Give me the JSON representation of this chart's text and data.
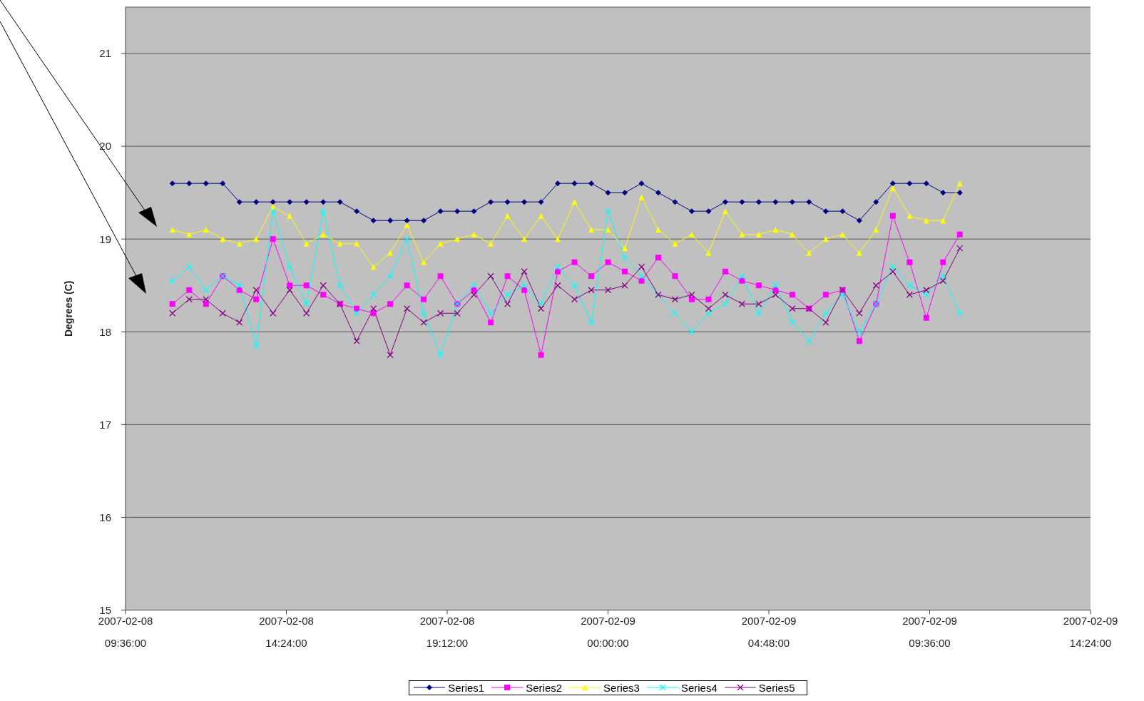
{
  "chart_data": {
    "type": "line",
    "ylabel": "Degrees (C)",
    "x": [
      "2007-02-08T11:00",
      "2007-02-08T11:30",
      "2007-02-08T12:00",
      "2007-02-08T12:30",
      "2007-02-08T13:00",
      "2007-02-08T13:30",
      "2007-02-08T14:00",
      "2007-02-08T14:30",
      "2007-02-08T15:00",
      "2007-02-08T15:30",
      "2007-02-08T16:00",
      "2007-02-08T16:30",
      "2007-02-08T17:00",
      "2007-02-08T17:30",
      "2007-02-08T18:00",
      "2007-02-08T18:30",
      "2007-02-08T19:00",
      "2007-02-08T19:30",
      "2007-02-08T20:00",
      "2007-02-08T20:30",
      "2007-02-08T21:00",
      "2007-02-08T21:30",
      "2007-02-08T22:00",
      "2007-02-08T22:30",
      "2007-02-08T23:00",
      "2007-02-08T23:30",
      "2007-02-09T00:00",
      "2007-02-09T00:30",
      "2007-02-09T01:00",
      "2007-02-09T01:30",
      "2007-02-09T02:00",
      "2007-02-09T02:30",
      "2007-02-09T03:00",
      "2007-02-09T03:30",
      "2007-02-09T04:00",
      "2007-02-09T04:30",
      "2007-02-09T05:00",
      "2007-02-09T05:30",
      "2007-02-09T06:00",
      "2007-02-09T06:30",
      "2007-02-09T07:00",
      "2007-02-09T07:30",
      "2007-02-09T08:00",
      "2007-02-09T08:30",
      "2007-02-09T09:00",
      "2007-02-09T09:30",
      "2007-02-09T10:00",
      "2007-02-09T10:30"
    ],
    "series": [
      {
        "name": "Series1",
        "color": "#000080",
        "marker": "diamond",
        "values": [
          19.6,
          19.6,
          19.6,
          19.6,
          19.4,
          19.4,
          19.4,
          19.4,
          19.4,
          19.4,
          19.4,
          19.3,
          19.2,
          19.2,
          19.2,
          19.2,
          19.3,
          19.3,
          19.3,
          19.4,
          19.4,
          19.4,
          19.4,
          19.6,
          19.6,
          19.6,
          19.5,
          19.5,
          19.6,
          19.5,
          19.4,
          19.3,
          19.3,
          19.4,
          19.4,
          19.4,
          19.4,
          19.4,
          19.4,
          19.3,
          19.3,
          19.2,
          19.4,
          19.6,
          19.6,
          19.6,
          19.5,
          19.5
        ]
      },
      {
        "name": "Series2",
        "color": "#ff00ff",
        "marker": "square",
        "values": [
          18.3,
          18.45,
          18.3,
          18.6,
          18.45,
          18.35,
          19.0,
          18.5,
          18.5,
          18.4,
          18.3,
          18.25,
          18.2,
          18.3,
          18.5,
          18.35,
          18.6,
          18.3,
          18.45,
          18.1,
          18.6,
          18.45,
          17.75,
          18.65,
          18.75,
          18.6,
          18.75,
          18.65,
          18.55,
          18.8,
          18.6,
          18.35,
          18.35,
          18.65,
          18.55,
          18.5,
          18.45,
          18.4,
          18.25,
          18.4,
          18.45,
          17.9,
          18.3,
          19.25,
          18.75,
          18.15,
          18.75,
          19.05
        ]
      },
      {
        "name": "Series3",
        "color": "#ffff00",
        "marker": "triangle",
        "values": [
          19.1,
          19.05,
          19.1,
          19.0,
          18.95,
          19.0,
          19.35,
          19.25,
          18.95,
          19.05,
          18.95,
          18.95,
          18.7,
          18.85,
          19.15,
          18.75,
          18.95,
          19.0,
          19.05,
          18.95,
          19.25,
          19.0,
          19.25,
          19.0,
          19.4,
          19.1,
          19.1,
          18.9,
          19.45,
          19.1,
          18.95,
          19.05,
          18.85,
          19.3,
          19.05,
          19.05,
          19.1,
          19.05,
          18.85,
          19.0,
          19.05,
          18.85,
          19.1,
          19.55,
          19.25,
          19.2,
          19.2,
          19.6
        ]
      },
      {
        "name": "Series4",
        "color": "#00ffff",
        "marker": "cross",
        "values": [
          18.55,
          18.7,
          18.45,
          18.6,
          18.5,
          17.85,
          19.3,
          18.7,
          18.3,
          19.3,
          18.5,
          18.2,
          18.4,
          18.6,
          19.0,
          18.2,
          17.75,
          18.3,
          18.5,
          18.2,
          18.4,
          18.5,
          18.3,
          18.7,
          18.5,
          18.1,
          19.3,
          18.8,
          18.6,
          18.4,
          18.2,
          18.0,
          18.2,
          18.3,
          18.6,
          18.2,
          18.5,
          18.1,
          17.9,
          18.2,
          18.4,
          18.0,
          18.3,
          18.7,
          18.5,
          18.4,
          18.6,
          18.2
        ]
      },
      {
        "name": "Series5",
        "color": "#800080",
        "marker": "cross",
        "values": [
          18.2,
          18.35,
          18.35,
          18.2,
          18.1,
          18.45,
          18.2,
          18.45,
          18.2,
          18.5,
          18.3,
          17.9,
          18.25,
          17.75,
          18.25,
          18.1,
          18.2,
          18.2,
          18.4,
          18.6,
          18.3,
          18.65,
          18.25,
          18.5,
          18.35,
          18.45,
          18.45,
          18.5,
          18.7,
          18.4,
          18.35,
          18.4,
          18.25,
          18.4,
          18.3,
          18.3,
          18.4,
          18.25,
          18.25,
          18.1,
          18.45,
          18.2,
          18.5,
          18.65,
          18.4,
          18.45,
          18.55,
          18.9
        ]
      }
    ],
    "xlim": [
      "2007-02-08T09:36",
      "2007-02-09T14:24"
    ],
    "xticks": [
      {
        "value": "2007-02-08T09:36",
        "label": "2007-02-08\n09:36:00"
      },
      {
        "value": "2007-02-08T14:24",
        "label": "2007-02-08\n14:24:00"
      },
      {
        "value": "2007-02-08T19:12",
        "label": "2007-02-08\n19:12:00"
      },
      {
        "value": "2007-02-09T00:00",
        "label": "2007-02-09\n00:00:00"
      },
      {
        "value": "2007-02-09T04:48",
        "label": "2007-02-09\n04:48:00"
      },
      {
        "value": "2007-02-09T09:36",
        "label": "2007-02-09\n09:36:00"
      },
      {
        "value": "2007-02-09T14:24",
        "label": "2007-02-09\n14:24:00"
      }
    ],
    "ylim": [
      15,
      21.5
    ],
    "yticks": [
      15,
      16,
      17,
      18,
      19,
      20,
      21
    ],
    "grid": "y",
    "legend": "bottom",
    "line_style": "solid"
  }
}
